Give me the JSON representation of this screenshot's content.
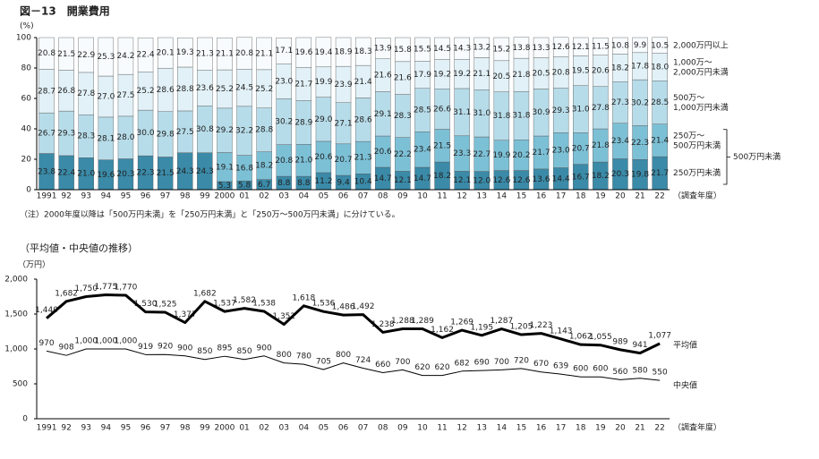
{
  "chart_data": [
    {
      "type": "stacked_bar",
      "title": "図－13　開業費用",
      "y_label": "(%)",
      "x_label": "（調査年度）",
      "note": "（注）2000年度以降は「500万円未満」を「250万円未満」と「250万～500万円未満」に分けている。",
      "categories": [
        "1991",
        "92",
        "93",
        "94",
        "95",
        "96",
        "97",
        "98",
        "99",
        "2000",
        "01",
        "02",
        "03",
        "04",
        "05",
        "06",
        "07",
        "08",
        "09",
        "10",
        "11",
        "12",
        "13",
        "14",
        "15",
        "16",
        "17",
        "18",
        "19",
        "20",
        "21",
        "22"
      ],
      "ylim": [
        0,
        100
      ],
      "yticks": [
        0,
        20,
        40,
        60,
        80,
        100
      ],
      "series": [
        {
          "name": "500万円未満",
          "color": "#3a8aa8",
          "values": [
            23.8,
            22.4,
            21.0,
            19.6,
            20.3,
            22.3,
            21.5,
            24.3,
            24.3,
            null,
            null,
            null,
            null,
            null,
            null,
            null,
            null,
            null,
            null,
            null,
            null,
            null,
            null,
            null,
            null,
            null,
            null,
            null,
            null,
            null,
            null,
            null
          ],
          "value_labels": [
            "23.8",
            "22.4",
            "21.0",
            "19.6",
            "20.3",
            "22.3",
            "21.5",
            "24.3",
            "24.3",
            null,
            null,
            null,
            null,
            null,
            null,
            null,
            null,
            null,
            null,
            null,
            null,
            null,
            null,
            null,
            null,
            null,
            null,
            null,
            null,
            null,
            null,
            null
          ]
        },
        {
          "name": "250万円未満",
          "color": "#3a8aa8",
          "values": [
            null,
            null,
            null,
            null,
            null,
            null,
            null,
            null,
            null,
            5.3,
            5.8,
            6.7,
            8.8,
            8.8,
            11.2,
            9.4,
            10.4,
            14.7,
            12.1,
            14.7,
            18.2,
            12.1,
            12.0,
            12.6,
            12.6,
            13.6,
            14.4,
            16.7,
            18.2,
            20.3,
            19.8,
            21.7
          ],
          "value_labels": [
            null,
            null,
            null,
            null,
            null,
            null,
            null,
            null,
            null,
            "5.3",
            "5.8",
            "6.7",
            "8.8",
            "8.8",
            "11.2",
            "9.4",
            "10.4",
            "14.7",
            "12.1",
            "14.7",
            "18.2",
            "12.1",
            "12.0",
            "12.6",
            "12.6",
            "13.6",
            "14.4",
            "16.7",
            "18.2",
            "20.3",
            "19.8",
            "21.7"
          ]
        },
        {
          "name": "250万～\n500万円未満",
          "color": "#7cc0d6",
          "values": [
            null,
            null,
            null,
            null,
            null,
            null,
            null,
            null,
            null,
            19.1,
            16.8,
            18.2,
            20.8,
            21.0,
            20.6,
            20.7,
            21.3,
            20.6,
            22.2,
            23.4,
            21.5,
            23.3,
            22.7,
            19.9,
            20.2,
            21.7,
            23.0,
            20.7,
            21.8,
            23.4,
            22.3,
            21.4
          ],
          "value_labels": [
            null,
            null,
            null,
            null,
            null,
            null,
            null,
            null,
            null,
            "19.1",
            "16.8",
            "18.2",
            "20.8",
            "21.0",
            "20.6",
            "20.7",
            "21.3",
            "20.6",
            "22.2",
            "23.4",
            "21.5",
            "23.3",
            "22.7",
            "19.9",
            "20.2",
            "21.7",
            "23.0",
            "20.7",
            "21.8",
            "23.4",
            "22.3",
            "21.4"
          ]
        },
        {
          "name": "500万～\n1,000万円未満",
          "color": "#b7dce9",
          "values": [
            26.7,
            29.3,
            28.3,
            28.1,
            28.0,
            30.0,
            29.8,
            27.5,
            30.8,
            29.2,
            32.2,
            28.8,
            30.2,
            28.9,
            29.0,
            27.1,
            28.6,
            29.1,
            28.3,
            28.5,
            26.6,
            31.1,
            31.0,
            31.8,
            31.8,
            30.9,
            29.3,
            31.0,
            27.8,
            27.3,
            30.2,
            28.5
          ],
          "value_labels": [
            "26.7",
            "29.3",
            "28.3",
            "28.1",
            "28.0",
            "30.0",
            "29.8",
            "27.5",
            "30.8",
            "29.2",
            "32.2",
            "28.8",
            "30.2",
            "28.9",
            "29.0",
            "27.1",
            "28.6",
            "29.1",
            "28.3",
            "28.5",
            "26.6",
            "31.1",
            "31.0",
            "31.8",
            "31.8",
            "30.9",
            "29.3",
            "31.0",
            "27.8",
            "27.3",
            "30.2",
            "28.5"
          ]
        },
        {
          "name": "1,000万～\n2,000万円未満",
          "color": "#e1f1f7",
          "values": [
            28.7,
            26.8,
            27.8,
            27.0,
            27.5,
            25.2,
            28.6,
            28.8,
            23.6,
            25.2,
            24.5,
            25.2,
            23.0,
            21.7,
            19.9,
            23.9,
            21.4,
            21.6,
            21.6,
            17.9,
            19.2,
            19.2,
            21.1,
            20.5,
            21.8,
            20.5,
            20.8,
            19.5,
            20.6,
            18.2,
            17.8,
            18.0
          ],
          "value_labels": [
            "28.7",
            "26.8",
            "27.8",
            "27.0",
            "27.5",
            "25.2",
            "28.6",
            "28.8",
            "23.6",
            "25.2",
            "24.5",
            "25.2",
            "23.0",
            "21.7",
            "19.9",
            "23.9",
            "21.4",
            "21.6",
            "21.6",
            "17.9",
            "19.2",
            "19.2",
            "21.1",
            "20.5",
            "21.8",
            "20.5",
            "20.8",
            "19.5",
            "20.6",
            "18.2",
            "17.8",
            "18.0"
          ]
        },
        {
          "name": "2,000万円以上",
          "color": "#f7fbfd",
          "values": [
            20.8,
            21.5,
            22.9,
            25.3,
            24.2,
            22.4,
            20.1,
            19.3,
            21.3,
            21.1,
            20.8,
            21.1,
            17.1,
            19.6,
            19.4,
            18.9,
            18.3,
            13.9,
            15.8,
            15.5,
            14.5,
            14.3,
            13.2,
            15.2,
            13.8,
            13.3,
            12.6,
            12.1,
            11.5,
            10.8,
            9.9,
            10.5
          ],
          "value_labels": [
            "20.8",
            "21.5",
            "22.9",
            "25.3",
            "24.2",
            "22.4",
            "20.1",
            "19.3",
            "21.3",
            "21.1",
            "20.8",
            "21.1",
            "17.1",
            "19.6",
            "19.4",
            "18.9",
            "18.3",
            "13.9",
            "15.8",
            "15.5",
            "14.5",
            "14.3",
            "13.2",
            "15.2",
            "13.8",
            "13.3",
            "12.6",
            "12.1",
            "11.5",
            "10.8",
            "9.9",
            "10.5"
          ]
        }
      ]
    },
    {
      "type": "line",
      "title": "（平均値・中央値の推移）",
      "y_label": "（万円）",
      "x_label": "（調査年度）",
      "categories": [
        "1991",
        "92",
        "93",
        "94",
        "95",
        "96",
        "97",
        "98",
        "99",
        "2000",
        "01",
        "02",
        "03",
        "04",
        "05",
        "06",
        "07",
        "08",
        "09",
        "10",
        "11",
        "12",
        "13",
        "14",
        "15",
        "16",
        "17",
        "18",
        "19",
        "20",
        "21",
        "22"
      ],
      "ylim": [
        0,
        2000
      ],
      "yticks": [
        0,
        500,
        {
          "value": 1000,
          "label": "1,000"
        },
        {
          "value": 1500,
          "label": "1,500"
        },
        {
          "value": 2000,
          "label": "2,000"
        }
      ],
      "series": [
        {
          "name": "平均値",
          "color": "#000000",
          "width": 3,
          "values": [
            1440,
            1682,
            1750,
            1775,
            1770,
            1530,
            1525,
            1377,
            1682,
            1537,
            1582,
            1538,
            1352,
            1618,
            1536,
            1486,
            1492,
            1238,
            1288,
            1289,
            1162,
            1269,
            1195,
            1287,
            1205,
            1223,
            1143,
            1062,
            1055,
            989,
            941,
            1077
          ],
          "value_labels": [
            "1,440",
            "1,682",
            "1,750",
            "1,775",
            "1,770",
            "1,530",
            "1,525",
            "1,377",
            "1,682",
            "1,537",
            "1,582",
            "1,538",
            "1,352",
            "1,618",
            "1,536",
            "1,486",
            "1,492",
            "1,238",
            "1,288",
            "1,289",
            "1,162",
            "1,269",
            "1,195",
            "1,287",
            "1,205",
            "1,223",
            "1,143",
            "1,062",
            "1,055",
            "989",
            "941",
            "1,077"
          ]
        },
        {
          "name": "中央値",
          "color": "#000000",
          "width": 1,
          "values": [
            970,
            908,
            1000,
            1000,
            1000,
            919,
            920,
            900,
            850,
            895,
            850,
            900,
            800,
            780,
            705,
            800,
            724,
            660,
            700,
            620,
            620,
            682,
            690,
            700,
            720,
            670,
            639,
            600,
            600,
            560,
            580,
            550
          ],
          "value_labels": [
            "970",
            "908",
            "1,000",
            "1,000",
            "1,000",
            "919",
            "920",
            "900",
            "850",
            "895",
            "850",
            "900",
            "800",
            "780",
            "705",
            "800",
            "724",
            "660",
            "700",
            "620",
            "620",
            "682",
            "690",
            "700",
            "720",
            "670",
            "639",
            "600",
            "600",
            "560",
            "580",
            "550"
          ]
        }
      ]
    }
  ]
}
